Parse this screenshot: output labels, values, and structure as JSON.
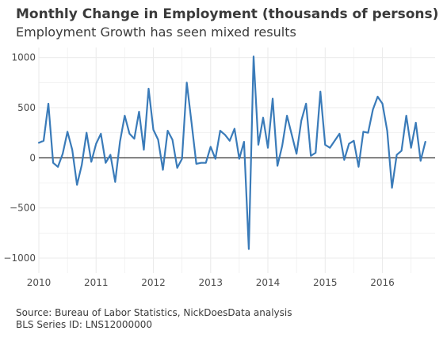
{
  "chart_title": "Monthly Change in Employment (thousands of persons)",
  "chart_subtitle": "Employment Growth has seen mixed results",
  "caption_source": "Source: Bureau of Labor Statistics, NickDoesData analysis",
  "caption_series": "BLS Series ID: LNS12000000",
  "colors": {
    "line": "#3a7bb9",
    "zero_line": "#000000",
    "grid": "#ebebeb",
    "background": "#ffffff"
  },
  "chart_data": {
    "type": "line",
    "title": "Monthly Change in Employment (thousands of persons)",
    "subtitle": "Employment Growth has seen mixed results",
    "xlabel": "",
    "ylabel": "",
    "grid": true,
    "legend": "none",
    "x_range": [
      2010,
      2016.92
    ],
    "ylim": [
      -1150,
      1100
    ],
    "x_ticks": [
      2010,
      2011,
      2012,
      2013,
      2014,
      2015,
      2016
    ],
    "x_tick_labels": [
      "2010",
      "2011",
      "2012",
      "2013",
      "2014",
      "2015",
      "2016"
    ],
    "y_ticks": [
      -1000,
      -500,
      0,
      500,
      1000
    ],
    "y_tick_labels": [
      "−1000",
      "−500",
      "0",
      "500",
      "1000"
    ],
    "reference_line": 0,
    "series": [
      {
        "start_year": 2010,
        "step": "monthly",
        "values": [
          150,
          170,
          540,
          -50,
          -90,
          40,
          260,
          80,
          -270,
          -70,
          250,
          -40,
          140,
          240,
          -50,
          30,
          -240,
          160,
          420,
          240,
          190,
          460,
          80,
          690,
          280,
          180,
          -120,
          270,
          180,
          -100,
          -10,
          750,
          350,
          -60,
          -50,
          -50,
          110,
          -10,
          270,
          230,
          170,
          290,
          -10,
          160,
          -910,
          1010,
          130,
          400,
          100,
          590,
          -80,
          120,
          420,
          230,
          40,
          370,
          540,
          20,
          50,
          660,
          130,
          100,
          170,
          240,
          -20,
          140,
          170,
          -90,
          260,
          250,
          480,
          610,
          540,
          270,
          -300,
          30,
          70,
          420,
          100,
          350,
          -30,
          160
        ]
      }
    ]
  }
}
